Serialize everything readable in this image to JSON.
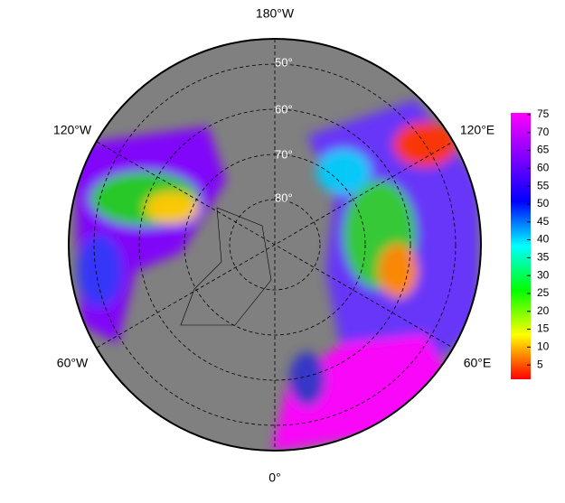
{
  "map": {
    "meridian_labels": [
      "180°W",
      "120°W",
      "120°E",
      "60°W",
      "60°E",
      "0°"
    ],
    "latitude_labels": [
      "50°",
      "60°",
      "70°",
      "80°"
    ],
    "colorbar": {
      "lim": [
        1,
        75.5
      ],
      "ticks": [
        5,
        10,
        15,
        20,
        25,
        30,
        35,
        40,
        45,
        50,
        55,
        60,
        65,
        70,
        75
      ],
      "colors": [
        "#ff0000",
        "#ffff00",
        "#00ff00",
        "#00ffff",
        "#0000ff",
        "#8000ff",
        "#ff00ff"
      ]
    }
  }
}
